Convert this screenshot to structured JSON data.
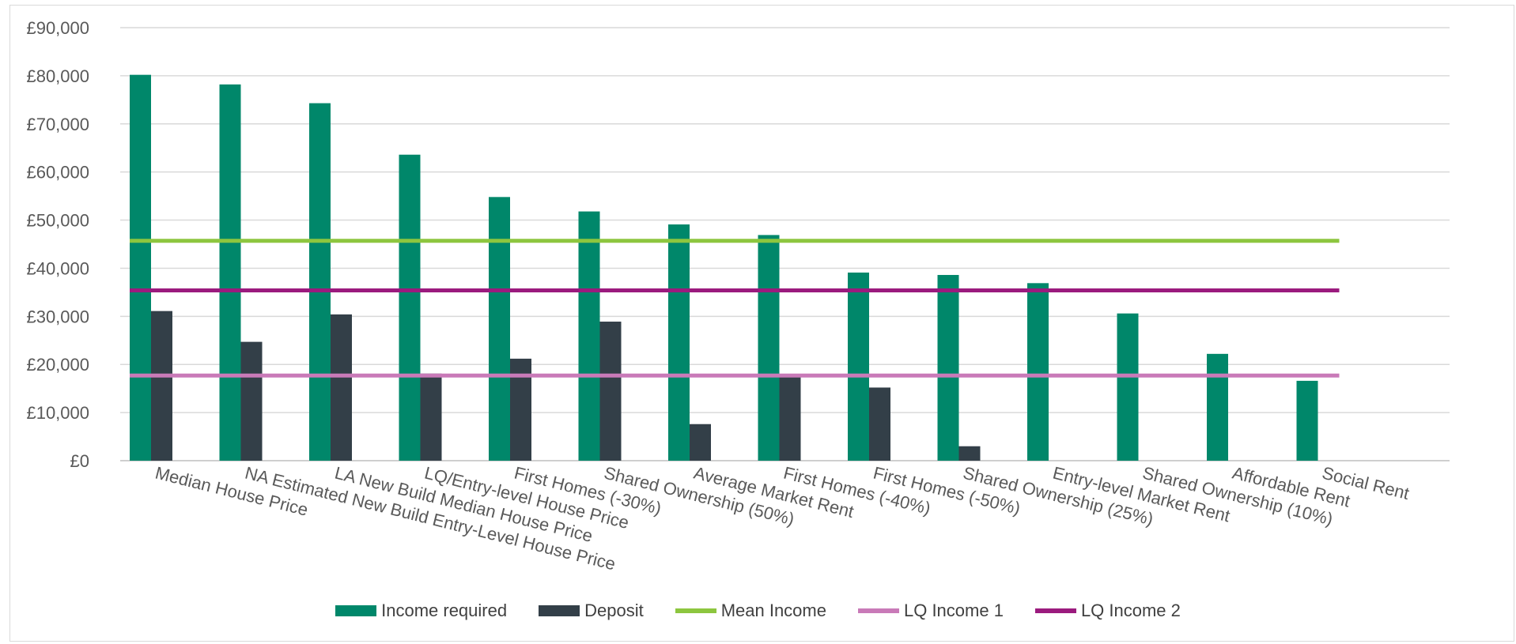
{
  "chart_data": {
    "type": "bar",
    "title": "",
    "xlabel": "",
    "ylabel": "",
    "ylim": [
      0,
      90000
    ],
    "yticks": [
      0,
      10000,
      20000,
      30000,
      40000,
      50000,
      60000,
      70000,
      80000,
      90000
    ],
    "ytick_labels": [
      "£0",
      "£10,000",
      "£20,000",
      "£30,000",
      "£40,000",
      "£50,000",
      "£60,000",
      "£70,000",
      "£80,000",
      "£90,000"
    ],
    "grid": true,
    "legend_position": "bottom",
    "categories": [
      "Median House Price",
      "NA Estimated New Build Entry-Level House Price",
      "LA New Build Median House Price",
      "LQ/Entry-level House Price",
      "First Homes (-30%)",
      "Shared Ownership (50%)",
      "Average Market Rent",
      "First Homes (-40%)",
      "First Homes (-50%)",
      "Shared Ownership (25%)",
      "Entry-level Market Rent",
      "Shared Ownership (10%)",
      "Affordable Rent",
      "Social Rent"
    ],
    "series": [
      {
        "name": "Income required",
        "kind": "bar",
        "color": "#00876a",
        "values": [
          80200,
          78200,
          74300,
          63600,
          54800,
          51800,
          49100,
          46900,
          39100,
          38600,
          36900,
          30600,
          22200,
          16600
        ]
      },
      {
        "name": "Deposit",
        "kind": "bar",
        "color": "#333f48",
        "values": [
          31100,
          24700,
          30400,
          18100,
          21200,
          28900,
          7600,
          18000,
          15200,
          3000,
          null,
          null,
          null,
          null
        ]
      },
      {
        "name": "Mean Income",
        "kind": "line",
        "color": "#8dc63f",
        "value": 45700
      },
      {
        "name": "LQ Income 1",
        "kind": "line",
        "color": "#c97ab8",
        "value": 17700
      },
      {
        "name": "LQ Income 2",
        "kind": "line",
        "color": "#9b1b7e",
        "value": 35400
      }
    ]
  }
}
